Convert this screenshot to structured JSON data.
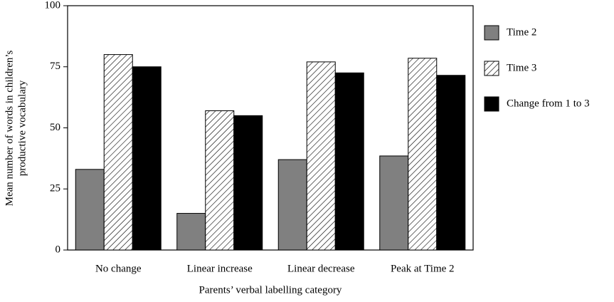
{
  "chart_data": {
    "type": "bar",
    "xlabel": "Parents’ verbal labelling category",
    "ylabel": [
      "Mean number of words in children’s",
      "productive vocabulary"
    ],
    "categories": [
      "No change",
      "Linear increase",
      "Linear decrease",
      "Peak at Time 2"
    ],
    "series": [
      {
        "name": "Time 2",
        "color": "#808080",
        "values": [
          33,
          15,
          37,
          38.5
        ]
      },
      {
        "name": "Time 3",
        "color": "#ffffff",
        "hatch": true,
        "values": [
          80,
          57,
          77,
          78.5
        ]
      },
      {
        "name": "Change from 1 to 3",
        "color": "#000000",
        "values": [
          75,
          55,
          72.5,
          71.5
        ]
      }
    ],
    "ylim": [
      0,
      100
    ],
    "yticks": [
      0,
      25,
      50,
      75,
      100
    ],
    "grid": false,
    "legend": "right"
  }
}
